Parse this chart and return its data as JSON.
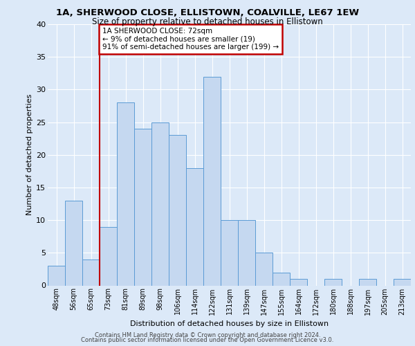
{
  "title1": "1A, SHERWOOD CLOSE, ELLISTOWN, COALVILLE, LE67 1EW",
  "title2": "Size of property relative to detached houses in Ellistown",
  "xlabel": "Distribution of detached houses by size in Ellistown",
  "ylabel": "Number of detached properties",
  "categories": [
    "48sqm",
    "56sqm",
    "65sqm",
    "73sqm",
    "81sqm",
    "89sqm",
    "98sqm",
    "106sqm",
    "114sqm",
    "122sqm",
    "131sqm",
    "139sqm",
    "147sqm",
    "155sqm",
    "164sqm",
    "172sqm",
    "180sqm",
    "188sqm",
    "197sqm",
    "205sqm",
    "213sqm"
  ],
  "values": [
    3,
    13,
    4,
    9,
    28,
    24,
    25,
    23,
    18,
    32,
    10,
    10,
    5,
    2,
    1,
    0,
    1,
    0,
    1,
    0,
    1
  ],
  "bar_color": "#c5d8f0",
  "bar_edge_color": "#5b9bd5",
  "highlight_color": "#c00000",
  "annotation_text": "1A SHERWOOD CLOSE: 72sqm\n← 9% of detached houses are smaller (19)\n91% of semi-detached houses are larger (199) →",
  "annotation_box_color": "#ffffff",
  "annotation_box_edge": "#c00000",
  "ylim": [
    0,
    40
  ],
  "yticks": [
    0,
    5,
    10,
    15,
    20,
    25,
    30,
    35,
    40
  ],
  "footer1": "Contains HM Land Registry data © Crown copyright and database right 2024.",
  "footer2": "Contains public sector information licensed under the Open Government Licence v3.0.",
  "background_color": "#dce9f8",
  "plot_bg_color": "#dce9f8",
  "grid_color": "#ffffff"
}
